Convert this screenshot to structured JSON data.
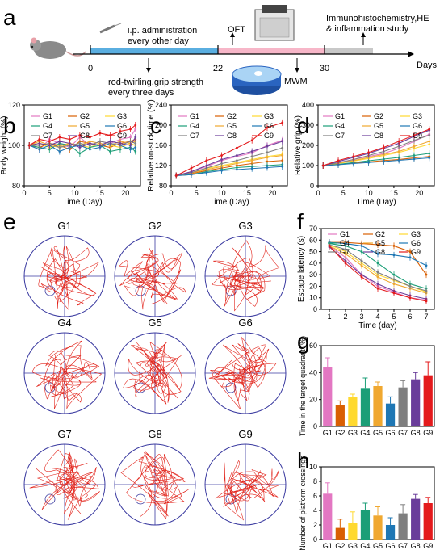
{
  "panel_labels": {
    "a": "a",
    "b": "b",
    "c": "c",
    "d": "d",
    "e": "e",
    "f": "f",
    "g": "g",
    "h": "h"
  },
  "colors": {
    "G1": "#e377c2",
    "G2": "#d95f02",
    "G3": "#ffd92f",
    "G4": "#1b9e77",
    "G5": "#f0a830",
    "G6": "#1f77b4",
    "G7": "#7f7f7f",
    "G8": "#6a3d9a",
    "G9": "#e41a1c",
    "timeline_blue": "#5aaee0",
    "timeline_pink": "#f7b6c8",
    "timeline_gray": "#c8c8c8"
  },
  "timeline": {
    "ticks": [
      "0",
      "22",
      "30"
    ],
    "days_label": "Days",
    "text_ip": "i.p. administration",
    "text_ip2": "every other day",
    "text_rod": "rod-twirling,grip strength",
    "text_rod2": "every three days",
    "text_oft": "OFT",
    "text_mwm": "MWM",
    "text_ihc": "Immunohistochemistry,HE",
    "text_ihc2": "& inflammation study"
  },
  "group_names": [
    "G1",
    "G2",
    "G3",
    "G4",
    "G5",
    "G6",
    "G7",
    "G8",
    "G9"
  ],
  "chart_data": [
    {
      "id": "b",
      "type": "line",
      "xlabel": "Time (Day)",
      "ylabel": "Body weight (%)",
      "xlim": [
        0,
        23
      ],
      "ylim": [
        80,
        120
      ],
      "xticks": [
        "0",
        "5",
        "10",
        "15",
        "20"
      ],
      "yticks": [
        "80",
        "100",
        "120"
      ],
      "x": [
        1,
        3,
        5,
        7,
        9,
        11,
        13,
        15,
        17,
        19,
        21,
        22
      ],
      "series": [
        {
          "name": "G1",
          "values": [
            100,
            98,
            103,
            101,
            99,
            104,
            100,
            102,
            101,
            103,
            104,
            108
          ]
        },
        {
          "name": "G2",
          "values": [
            100,
            99,
            101,
            100,
            98,
            102,
            101,
            100,
            99,
            101,
            102,
            103
          ]
        },
        {
          "name": "G3",
          "values": [
            100,
            101,
            99,
            100,
            101,
            100,
            99,
            101,
            100,
            99,
            101,
            100
          ]
        },
        {
          "name": "G4",
          "values": [
            100,
            99,
            98,
            101,
            100,
            96,
            99,
            100,
            97,
            98,
            99,
            97
          ]
        },
        {
          "name": "G5",
          "values": [
            100,
            102,
            100,
            99,
            101,
            100,
            102,
            101,
            100,
            102,
            101,
            102
          ]
        },
        {
          "name": "G6",
          "values": [
            100,
            98,
            100,
            97,
            99,
            100,
            98,
            99,
            101,
            100,
            98,
            99
          ]
        },
        {
          "name": "G7",
          "values": [
            100,
            100,
            101,
            99,
            100,
            101,
            100,
            102,
            101,
            100,
            102,
            101
          ]
        },
        {
          "name": "G8",
          "values": [
            100,
            101,
            100,
            102,
            101,
            99,
            101,
            100,
            102,
            101,
            100,
            104
          ]
        },
        {
          "name": "G9",
          "values": [
            100,
            103,
            102,
            104,
            103,
            105,
            104,
            106,
            105,
            107,
            108,
            110
          ]
        }
      ]
    },
    {
      "id": "c",
      "type": "line",
      "xlabel": "Time (Day)",
      "ylabel": "Relative on-stick time (%)",
      "xlim": [
        0,
        23
      ],
      "ylim": [
        80,
        240
      ],
      "xticks": [
        "0",
        "5",
        "10",
        "15",
        "20"
      ],
      "yticks": [
        "80",
        "120",
        "160",
        "200",
        "240"
      ],
      "x": [
        1,
        4,
        7,
        10,
        13,
        16,
        19,
        22
      ],
      "series": [
        {
          "name": "G1",
          "values": [
            100,
            108,
            118,
            130,
            138,
            145,
            160,
            170
          ]
        },
        {
          "name": "G2",
          "values": [
            100,
            104,
            110,
            115,
            120,
            124,
            128,
            130
          ]
        },
        {
          "name": "G3",
          "values": [
            100,
            106,
            114,
            120,
            126,
            132,
            138,
            142
          ]
        },
        {
          "name": "G4",
          "values": [
            100,
            102,
            108,
            112,
            116,
            118,
            120,
            122
          ]
        },
        {
          "name": "G5",
          "values": [
            100,
            105,
            112,
            118,
            124,
            130,
            136,
            140
          ]
        },
        {
          "name": "G6",
          "values": [
            100,
            102,
            106,
            110,
            112,
            114,
            116,
            118
          ]
        },
        {
          "name": "G7",
          "values": [
            100,
            106,
            115,
            124,
            130,
            138,
            146,
            155
          ]
        },
        {
          "name": "G8",
          "values": [
            100,
            108,
            120,
            132,
            140,
            148,
            158,
            168
          ]
        },
        {
          "name": "G9",
          "values": [
            100,
            115,
            130,
            140,
            155,
            170,
            195,
            205
          ]
        }
      ]
    },
    {
      "id": "d",
      "type": "line",
      "xlabel": "Time (Day)",
      "ylabel": "Relative grip (%)",
      "xlim": [
        0,
        23
      ],
      "ylim": [
        0,
        400
      ],
      "xticks": [
        "0",
        "5",
        "10",
        "15",
        "20"
      ],
      "yticks": [
        "0",
        "100",
        "200",
        "300",
        "400"
      ],
      "x": [
        1,
        4,
        7,
        10,
        13,
        16,
        19,
        22
      ],
      "series": [
        {
          "name": "G1",
          "values": [
            100,
            115,
            130,
            145,
            160,
            185,
            220,
            255
          ]
        },
        {
          "name": "G2",
          "values": [
            100,
            105,
            112,
            118,
            125,
            130,
            138,
            145
          ]
        },
        {
          "name": "G3",
          "values": [
            100,
            110,
            122,
            135,
            150,
            165,
            185,
            205
          ]
        },
        {
          "name": "G4",
          "values": [
            100,
            106,
            115,
            124,
            132,
            140,
            150,
            160
          ]
        },
        {
          "name": "G5",
          "values": [
            100,
            112,
            125,
            140,
            155,
            170,
            195,
            220
          ]
        },
        {
          "name": "G6",
          "values": [
            100,
            104,
            110,
            115,
            120,
            126,
            132,
            138
          ]
        },
        {
          "name": "G7",
          "values": [
            100,
            114,
            130,
            150,
            170,
            195,
            225,
            250
          ]
        },
        {
          "name": "G8",
          "values": [
            100,
            120,
            140,
            160,
            185,
            210,
            245,
            275
          ]
        },
        {
          "name": "G9",
          "values": [
            100,
            125,
            145,
            165,
            190,
            220,
            250,
            280
          ]
        }
      ]
    },
    {
      "id": "f",
      "type": "line",
      "xlabel": "Time (day)",
      "ylabel": "Escape latency (s)",
      "xlim": [
        0.5,
        7.5
      ],
      "ylim": [
        0,
        70
      ],
      "xticks": [
        "1",
        "2",
        "3",
        "4",
        "5",
        "6",
        "7"
      ],
      "yticks": [
        "0",
        "10",
        "20",
        "30",
        "40",
        "50",
        "60",
        "70"
      ],
      "x": [
        1,
        2,
        3,
        4,
        5,
        6,
        7
      ],
      "series": [
        {
          "name": "G1",
          "values": [
            55,
            45,
            30,
            20,
            15,
            10,
            8
          ]
        },
        {
          "name": "G2",
          "values": [
            58,
            58,
            57,
            56,
            55,
            50,
            30
          ]
        },
        {
          "name": "G3",
          "values": [
            56,
            50,
            40,
            30,
            25,
            20,
            15
          ]
        },
        {
          "name": "G4",
          "values": [
            57,
            55,
            50,
            40,
            30,
            22,
            18
          ]
        },
        {
          "name": "G5",
          "values": [
            55,
            48,
            38,
            28,
            22,
            18,
            14
          ]
        },
        {
          "name": "G6",
          "values": [
            58,
            57,
            55,
            48,
            47,
            45,
            38
          ]
        },
        {
          "name": "G7",
          "values": [
            56,
            52,
            42,
            32,
            26,
            20,
            16
          ]
        },
        {
          "name": "G8",
          "values": [
            54,
            42,
            30,
            22,
            16,
            12,
            9
          ]
        },
        {
          "name": "G9",
          "values": [
            55,
            40,
            28,
            18,
            14,
            10,
            7
          ]
        }
      ]
    },
    {
      "id": "g",
      "type": "bar",
      "xlabel": "",
      "ylabel": "Time in the target quadrant (%)",
      "ylim": [
        0,
        60
      ],
      "yticks": [
        "0",
        "20",
        "40",
        "60"
      ],
      "categories": [
        "G1",
        "G2",
        "G3",
        "G4",
        "G5",
        "G6",
        "G7",
        "G8",
        "G9"
      ],
      "values": [
        44,
        16,
        22,
        28,
        30,
        17,
        29,
        35,
        38
      ],
      "errors": [
        7,
        3,
        2,
        8,
        3,
        5,
        5,
        5,
        10
      ]
    },
    {
      "id": "h",
      "type": "bar",
      "xlabel": "",
      "ylabel": "Number of platform crossings",
      "ylim": [
        0,
        10
      ],
      "yticks": [
        "0",
        "2",
        "4",
        "6",
        "8",
        "10"
      ],
      "categories": [
        "G1",
        "G2",
        "G3",
        "G4",
        "G5",
        "G6",
        "G7",
        "G8",
        "G9"
      ],
      "values": [
        6.3,
        1.6,
        2.3,
        4.0,
        3.3,
        2.0,
        3.6,
        5.6,
        5.0
      ],
      "errors": [
        1.5,
        1.2,
        1.5,
        1.0,
        1.2,
        1.0,
        1.2,
        0.6,
        0.8
      ]
    }
  ]
}
